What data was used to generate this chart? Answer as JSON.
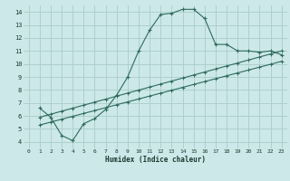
{
  "title": "",
  "xlabel": "Humidex (Indice chaleur)",
  "bg_color": "#cce8e8",
  "grid_color": "#aacccc",
  "line_color": "#2e6b5e",
  "xlim": [
    -0.5,
    23.5
  ],
  "ylim": [
    3.5,
    14.5
  ],
  "xticks": [
    0,
    1,
    2,
    3,
    4,
    5,
    6,
    7,
    8,
    9,
    10,
    11,
    12,
    13,
    14,
    15,
    16,
    17,
    18,
    19,
    20,
    21,
    22,
    23
  ],
  "yticks": [
    4,
    5,
    6,
    7,
    8,
    9,
    10,
    11,
    12,
    13,
    14
  ],
  "series1_x": [
    1,
    2,
    3,
    4,
    5,
    6,
    7,
    8,
    9,
    10,
    11,
    12,
    13,
    14,
    15,
    16,
    17,
    18,
    19,
    20,
    21,
    22,
    23
  ],
  "series1_y": [
    6.6,
    5.9,
    4.5,
    4.1,
    5.4,
    5.8,
    6.5,
    7.6,
    9.0,
    11.0,
    12.6,
    13.8,
    13.9,
    14.2,
    14.2,
    13.5,
    11.5,
    11.5,
    11.0,
    11.0,
    10.9,
    11.0,
    10.7
  ],
  "series2_x": [
    1,
    4,
    23
  ],
  "series2_y": [
    5.9,
    5.6,
    11.0
  ],
  "series3_x": [
    1,
    4,
    23
  ],
  "series3_y": [
    5.5,
    4.9,
    10.2
  ],
  "line2_x": [
    1,
    23
  ],
  "line2_y": [
    5.9,
    11.0
  ],
  "line3_x": [
    1,
    23
  ],
  "line3_y": [
    5.3,
    10.2
  ]
}
